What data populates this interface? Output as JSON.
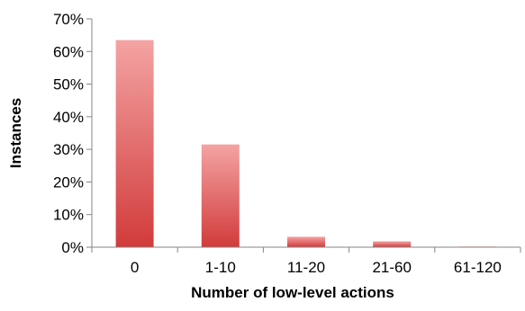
{
  "chart_data": {
    "type": "bar",
    "title": "",
    "xlabel": "Number of low-level actions",
    "ylabel": "Instances",
    "categories": [
      "0",
      "1-10",
      "11-20",
      "21-60",
      "61-120"
    ],
    "values": [
      63.5,
      31.5,
      3.2,
      1.8,
      0.2
    ],
    "value_unit": "%",
    "ylim": [
      0,
      70
    ],
    "y_ticks": [
      0,
      10,
      20,
      30,
      40,
      50,
      60,
      70
    ],
    "y_tick_labels": [
      "0%",
      "10%",
      "20%",
      "30%",
      "40%",
      "50%",
      "60%",
      "70%"
    ],
    "grid": false,
    "legend": "none",
    "bar_color_top": "#f4a3a3",
    "bar_color_bottom": "#d23b3b"
  }
}
